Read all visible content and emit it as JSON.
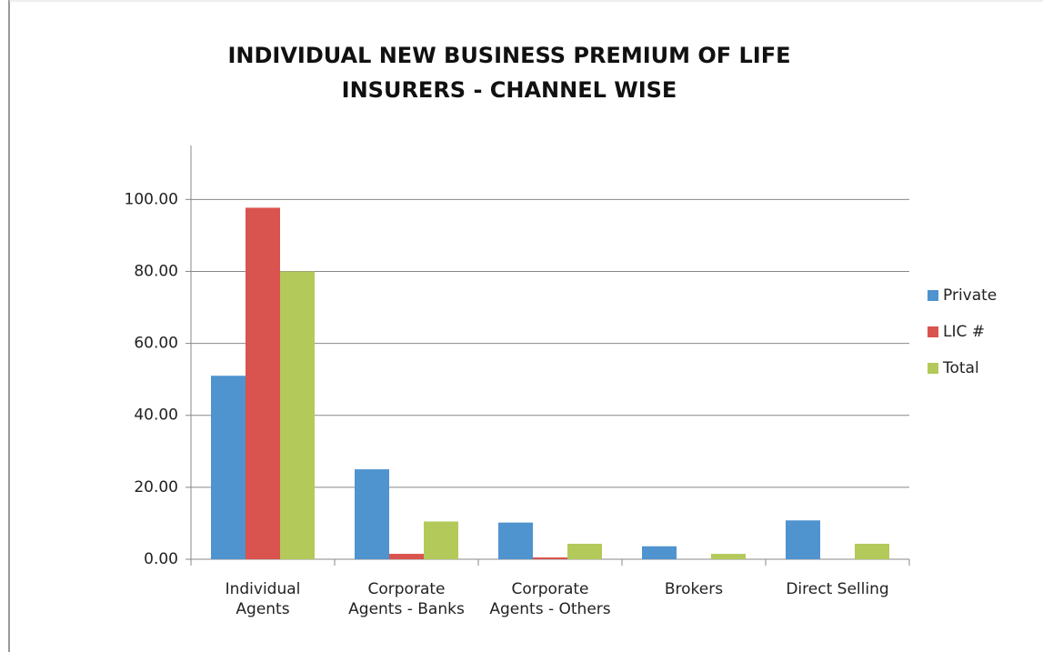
{
  "chart_data": {
    "type": "bar",
    "title": "INDIVIDUAL NEW BUSINESS PREMIUM OF LIFE INSURERS - CHANNEL WISE",
    "categories": [
      "Individual Agents",
      "Corporate Agents - Banks",
      "Corporate Agents - Others",
      "Brokers",
      "Direct Selling"
    ],
    "series": [
      {
        "name": "Private",
        "color": "#4f93cf",
        "values": [
          51,
          25,
          10.2,
          3.6,
          10.8
        ]
      },
      {
        "name": "LIC #",
        "color": "#d9534f",
        "values": [
          97.7,
          1.5,
          0.5,
          0,
          0
        ]
      },
      {
        "name": "Total",
        "color": "#b3c95a",
        "values": [
          80,
          10.5,
          4.3,
          1.5,
          4.3
        ]
      }
    ],
    "ylim": [
      0,
      115
    ],
    "yticks": [
      {
        "value": 0,
        "label": "0.00"
      },
      {
        "value": 20,
        "label": "20.00"
      },
      {
        "value": 40,
        "label": "40.00"
      },
      {
        "value": 60,
        "label": "60.00"
      },
      {
        "value": 80,
        "label": "80.00"
      },
      {
        "value": 100,
        "label": "100.00"
      }
    ],
    "grid": true,
    "legend": "right"
  }
}
